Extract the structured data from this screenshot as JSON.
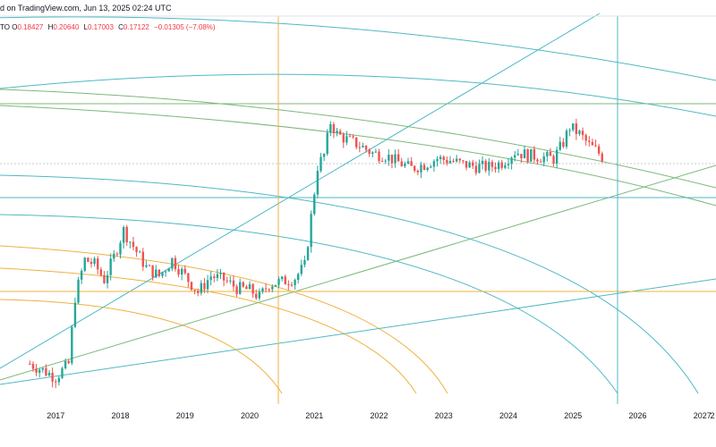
{
  "header": {
    "published_text": "d on TradingView.com, Jun 13, 2025 02:24 UTC"
  },
  "ohlc": {
    "symbol_fragment": "TO",
    "open_label": "O",
    "open_value": "0.18427",
    "high_label": "H",
    "high_value": "0.20640",
    "low_label": "L",
    "low_value": "0.17003",
    "close_label": "C",
    "close_value": "0.17122",
    "change_value": "−0.01305 (−7.08%)"
  },
  "colors": {
    "up": "#26a69a",
    "down": "#ef5350",
    "green_line": "#7cb87a",
    "teal_line": "#4fb8c4",
    "orange_line": "#f0b040",
    "grid_text": "#131722"
  },
  "chart_data": {
    "type": "candlestick",
    "x_axis_ticks": [
      "2017",
      "2018",
      "2019",
      "2020",
      "2021",
      "2022",
      "2023",
      "2024",
      "2025",
      "2026",
      "2027",
      "2"
    ],
    "price_path": [
      {
        "t": 2016.6,
        "v": 0.012
      },
      {
        "t": 2016.8,
        "v": 0.011
      },
      {
        "t": 2017.0,
        "v": 0.01
      },
      {
        "t": 2017.2,
        "v": 0.012
      },
      {
        "t": 2017.3,
        "v": 0.03
      },
      {
        "t": 2017.45,
        "v": 0.05
      },
      {
        "t": 2017.6,
        "v": 0.047
      },
      {
        "t": 2017.75,
        "v": 0.038
      },
      {
        "t": 2017.9,
        "v": 0.052
      },
      {
        "t": 2018.05,
        "v": 0.075
      },
      {
        "t": 2018.2,
        "v": 0.06
      },
      {
        "t": 2018.4,
        "v": 0.045
      },
      {
        "t": 2018.6,
        "v": 0.04
      },
      {
        "t": 2018.8,
        "v": 0.05
      },
      {
        "t": 2019.0,
        "v": 0.04
      },
      {
        "t": 2019.2,
        "v": 0.032
      },
      {
        "t": 2019.4,
        "v": 0.04
      },
      {
        "t": 2019.6,
        "v": 0.038
      },
      {
        "t": 2019.8,
        "v": 0.034
      },
      {
        "t": 2020.0,
        "v": 0.033
      },
      {
        "t": 2020.15,
        "v": 0.03
      },
      {
        "t": 2020.3,
        "v": 0.036
      },
      {
        "t": 2020.5,
        "v": 0.037
      },
      {
        "t": 2020.7,
        "v": 0.039
      },
      {
        "t": 2020.85,
        "v": 0.046
      },
      {
        "t": 2020.95,
        "v": 0.09
      },
      {
        "t": 2021.05,
        "v": 0.18
      },
      {
        "t": 2021.15,
        "v": 0.21
      },
      {
        "t": 2021.25,
        "v": 0.33
      },
      {
        "t": 2021.35,
        "v": 0.28
      },
      {
        "t": 2021.5,
        "v": 0.26
      },
      {
        "t": 2021.7,
        "v": 0.24
      },
      {
        "t": 2021.9,
        "v": 0.215
      },
      {
        "t": 2022.1,
        "v": 0.21
      },
      {
        "t": 2022.3,
        "v": 0.19
      },
      {
        "t": 2022.5,
        "v": 0.175
      },
      {
        "t": 2022.7,
        "v": 0.185
      },
      {
        "t": 2022.9,
        "v": 0.2
      },
      {
        "t": 2023.1,
        "v": 0.195
      },
      {
        "t": 2023.3,
        "v": 0.185
      },
      {
        "t": 2023.5,
        "v": 0.18
      },
      {
        "t": 2023.7,
        "v": 0.178
      },
      {
        "t": 2023.9,
        "v": 0.19
      },
      {
        "t": 2024.1,
        "v": 0.22
      },
      {
        "t": 2024.3,
        "v": 0.21
      },
      {
        "t": 2024.5,
        "v": 0.205
      },
      {
        "t": 2024.7,
        "v": 0.2
      },
      {
        "t": 2024.85,
        "v": 0.25
      },
      {
        "t": 2024.95,
        "v": 0.31
      },
      {
        "t": 2025.1,
        "v": 0.28
      },
      {
        "t": 2025.25,
        "v": 0.24
      },
      {
        "t": 2025.35,
        "v": 0.225
      },
      {
        "t": 2025.45,
        "v": 0.206
      },
      {
        "t": 2025.5,
        "v": 0.171
      }
    ]
  }
}
